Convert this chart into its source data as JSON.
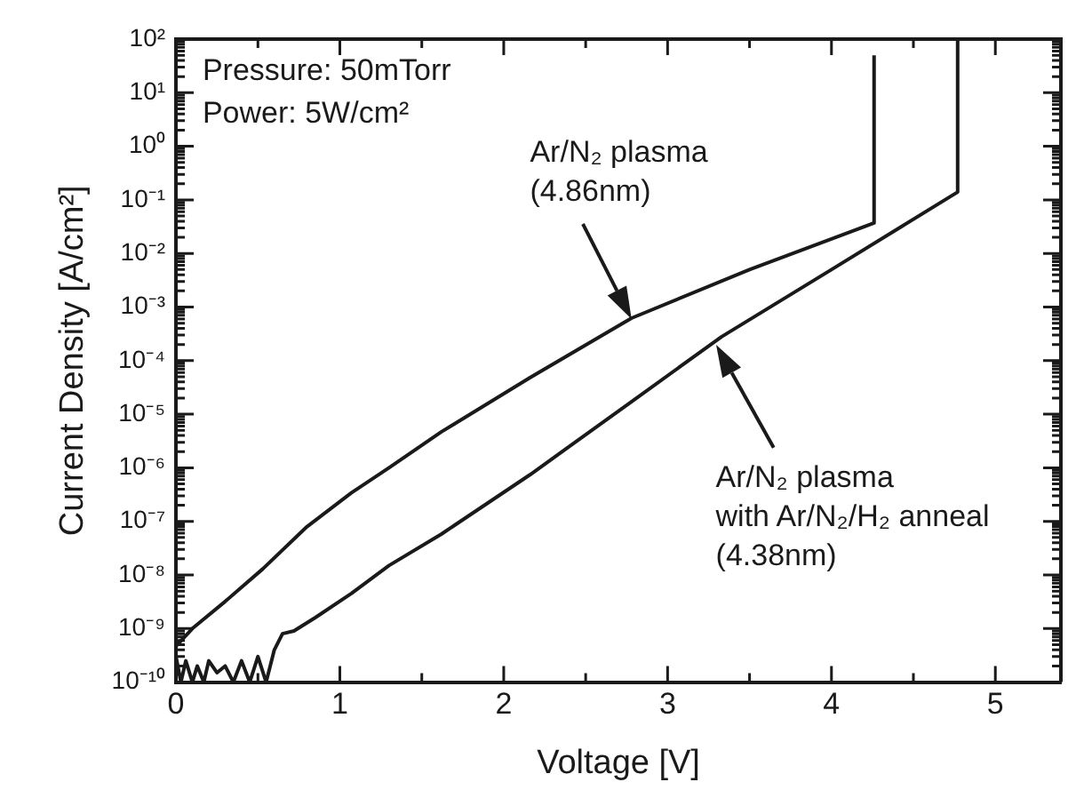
{
  "chart_data": {
    "type": "line",
    "xlabel": "Voltage [V]",
    "ylabel": "Current Density [A/cm²]",
    "log": "y",
    "marker": "none",
    "line_style": "solid",
    "xlim": [
      0,
      5.4
    ],
    "ylim": [
      1e-10,
      100
    ],
    "xticks": [
      0,
      {
        "value": 0.5,
        "label": null
      },
      1,
      {
        "value": 1.5,
        "label": null
      },
      2,
      {
        "value": 2.5,
        "label": null
      },
      3,
      {
        "value": 3.5,
        "label": null
      },
      4,
      {
        "value": 4.5,
        "label": null
      },
      5
    ],
    "yticks": [
      {
        "value": 1e-10,
        "label": "10⁻¹⁰"
      },
      {
        "value": 1e-09,
        "label": "10⁻⁹"
      },
      {
        "value": 1e-08,
        "label": "10⁻⁸"
      },
      {
        "value": 1e-07,
        "label": "10⁻⁷"
      },
      {
        "value": 1e-06,
        "label": "10⁻⁶"
      },
      {
        "value": 1e-05,
        "label": "10⁻⁵"
      },
      {
        "value": 0.0001,
        "label": "10⁻⁴"
      },
      {
        "value": 0.001,
        "label": "10⁻³"
      },
      {
        "value": 0.01,
        "label": "10⁻²"
      },
      {
        "value": 0.1,
        "label": "10⁻¹"
      },
      {
        "value": 1,
        "label": "10⁰"
      },
      {
        "value": 10,
        "label": "10¹"
      },
      {
        "value": 100,
        "label": "10²"
      }
    ],
    "series": [
      {
        "color": "#1a1a1a",
        "x": [
          0,
          0.1,
          0.3,
          0.53,
          0.8,
          1.07,
          1.3,
          1.62,
          2.16,
          2.78,
          3.5,
          4.26,
          4.26
        ],
        "values": [
          4.7e-10,
          1e-09,
          3.2e-09,
          1.3e-08,
          8e-08,
          3.4e-07,
          1e-06,
          4.7e-06,
          4.8e-05,
          0.00062,
          0.005,
          0.037,
          50
        ]
      },
      {
        "color": "#1a1a1a",
        "x": [
          0,
          0.03,
          0.06,
          0.1,
          0.13,
          0.17,
          0.2,
          0.25,
          0.3,
          0.35,
          0.4,
          0.45,
          0.5,
          0.55,
          0.6,
          0.65,
          0.72,
          0.85,
          1.07,
          1.3,
          1.62,
          2.16,
          2.8,
          3.33,
          4.0,
          4.77,
          4.77
        ],
        "values": [
          3e-10,
          1e-10,
          2.5e-10,
          1e-10,
          2e-10,
          1e-10,
          2.5e-10,
          1.5e-10,
          2e-10,
          1e-10,
          2.5e-10,
          1e-10,
          3e-10,
          1e-10,
          4e-10,
          8e-10,
          9e-10,
          1.6e-09,
          4.5e-09,
          1.5e-08,
          5.8e-08,
          7.4e-07,
          1.9e-05,
          0.00028,
          0.005,
          0.14,
          100
        ]
      }
    ],
    "annotations": [
      "Pressure: 50mTorr",
      "Power: 5W/cm²",
      "Ar/N₂ plasma\n(4.86nm)",
      "Ar/N₂ plasma\nwith Ar/N₂/H₂ anneal\n(4.38nm)"
    ]
  }
}
